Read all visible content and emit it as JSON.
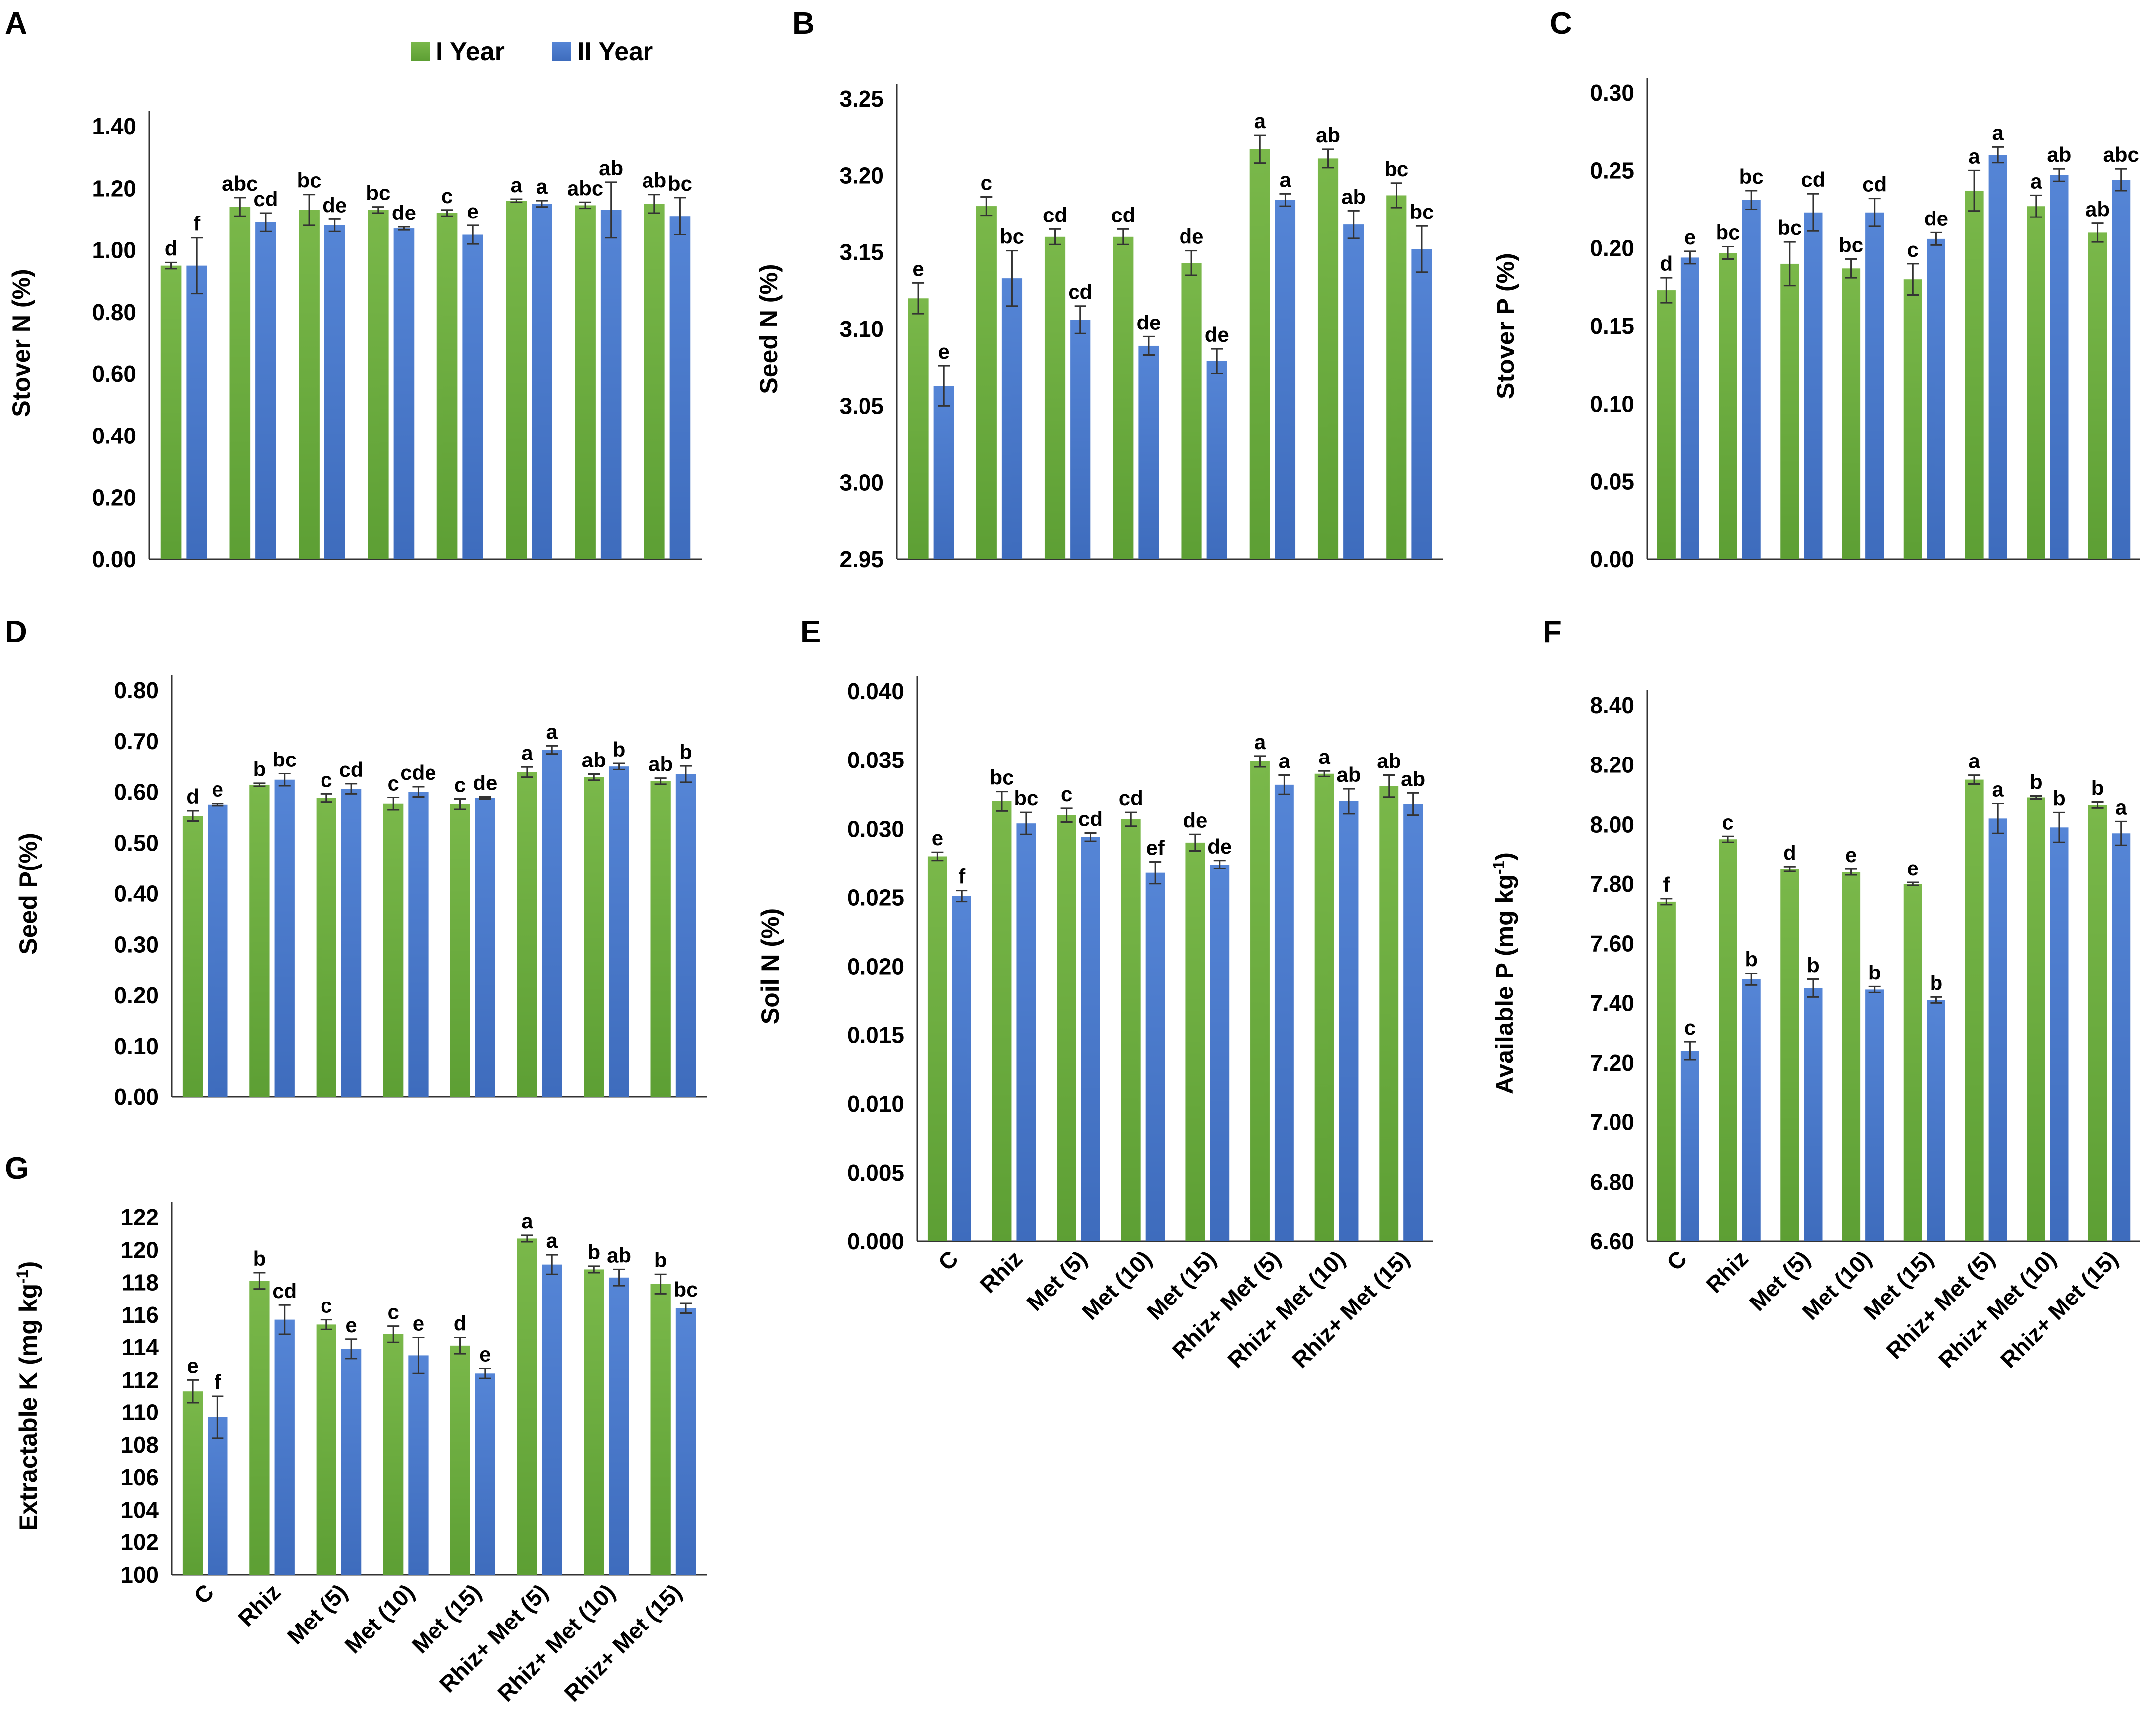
{
  "legend": {
    "series1": "I Year",
    "series2": "II Year",
    "color1": "#6aaa3f",
    "color2": "#4a78c8"
  },
  "categories": [
    "C",
    "Rhiz",
    "Met (5)",
    "Met (10)",
    "Met (15)",
    "Rhiz+ Met (5)",
    "Rhiz+ Met (10)",
    "Rhiz+ Met (15)"
  ],
  "chart_data": [
    {
      "panel": "A",
      "type": "bar",
      "ylabel": "Stover N (%)",
      "ylim": [
        0,
        1.4
      ],
      "yticks": [
        "0.00",
        "0.20",
        "0.40",
        "0.60",
        "0.80",
        "1.00",
        "1.20",
        "1.40"
      ],
      "show_categories": false,
      "series": [
        {
          "name": "I Year",
          "values": [
            0.95,
            1.14,
            1.13,
            1.13,
            1.12,
            1.16,
            1.145,
            1.15
          ],
          "errors": [
            0.01,
            0.03,
            0.05,
            0.01,
            0.01,
            0.005,
            0.01,
            0.03
          ],
          "labels": [
            "d",
            "abc",
            "bc",
            "bc",
            "c",
            "a",
            "abc",
            "ab"
          ]
        },
        {
          "name": "II Year",
          "values": [
            0.95,
            1.09,
            1.08,
            1.07,
            1.05,
            1.15,
            1.13,
            1.11
          ],
          "errors": [
            0.09,
            0.03,
            0.02,
            0.005,
            0.03,
            0.01,
            0.09,
            0.06
          ],
          "labels": [
            "f",
            "cd",
            "de",
            "de",
            "e",
            "a",
            "ab",
            "bc"
          ]
        }
      ]
    },
    {
      "panel": "B",
      "type": "bar",
      "ylabel": "Seed N (%)",
      "ylim": [
        2.95,
        3.25
      ],
      "yticks": [
        "2.95",
        "3.00",
        "3.05",
        "3.10",
        "3.15",
        "3.20",
        "3.25"
      ],
      "show_categories": false,
      "series": [
        {
          "name": "I Year",
          "values": [
            3.12,
            3.18,
            3.16,
            3.16,
            3.143,
            3.217,
            3.211,
            3.187
          ],
          "errors": [
            0.01,
            0.006,
            0.005,
            0.005,
            0.008,
            0.009,
            0.006,
            0.008
          ],
          "labels": [
            "e",
            "c",
            "cd",
            "cd",
            "de",
            "a",
            "ab",
            "bc"
          ]
        },
        {
          "name": "II Year",
          "values": [
            3.063,
            3.133,
            3.106,
            3.089,
            3.079,
            3.184,
            3.168,
            3.152
          ],
          "errors": [
            0.013,
            0.018,
            0.009,
            0.006,
            0.008,
            0.004,
            0.009,
            0.015
          ],
          "labels": [
            "e",
            "bc",
            "cd",
            "de",
            "de",
            "a",
            "ab",
            "bc"
          ]
        }
      ]
    },
    {
      "panel": "C",
      "type": "bar",
      "ylabel": "Stover P (%)",
      "ylim": [
        0,
        0.3
      ],
      "yticks": [
        "0.00",
        "0.05",
        "0.10",
        "0.15",
        "0.20",
        "0.25",
        "0.30"
      ],
      "show_categories": false,
      "series": [
        {
          "name": "I Year",
          "values": [
            0.173,
            0.197,
            0.19,
            0.187,
            0.18,
            0.237,
            0.227,
            0.21
          ],
          "errors": [
            0.008,
            0.004,
            0.014,
            0.006,
            0.01,
            0.013,
            0.007,
            0.006
          ],
          "labels": [
            "d",
            "bc",
            "bc",
            "bc",
            "c",
            "a",
            "a",
            "ab"
          ]
        },
        {
          "name": "II Year",
          "values": [
            0.194,
            0.231,
            0.223,
            0.223,
            0.206,
            0.26,
            0.247,
            0.244
          ],
          "errors": [
            0.004,
            0.006,
            0.012,
            0.009,
            0.004,
            0.005,
            0.004,
            0.007
          ],
          "labels": [
            "e",
            "bc",
            "cd",
            "cd",
            "de",
            "a",
            "ab",
            "abc"
          ]
        }
      ]
    },
    {
      "panel": "D",
      "type": "bar",
      "ylabel": "Seed P(%)",
      "ylim": [
        0,
        0.8
      ],
      "yticks": [
        "0.00",
        "0.10",
        "0.20",
        "0.30",
        "0.40",
        "0.50",
        "0.60",
        "0.70",
        "0.80"
      ],
      "show_categories": false,
      "series": [
        {
          "name": "I Year",
          "values": [
            0.553,
            0.614,
            0.588,
            0.577,
            0.576,
            0.639,
            0.629,
            0.621
          ],
          "errors": [
            0.01,
            0.003,
            0.008,
            0.012,
            0.01,
            0.01,
            0.006,
            0.006
          ],
          "labels": [
            "d",
            "b",
            "c",
            "c",
            "c",
            "a",
            "ab",
            "ab"
          ]
        },
        {
          "name": "II Year",
          "values": [
            0.575,
            0.624,
            0.606,
            0.6,
            0.588,
            0.683,
            0.65,
            0.635
          ],
          "errors": [
            0.002,
            0.012,
            0.01,
            0.01,
            0.002,
            0.008,
            0.006,
            0.016
          ],
          "labels": [
            "e",
            "bc",
            "cd",
            "cde",
            "de",
            "a",
            "b",
            "b"
          ]
        }
      ]
    },
    {
      "panel": "E",
      "type": "bar",
      "ylabel": "Soil N (%)",
      "ylim": [
        0,
        0.04
      ],
      "yticks": [
        "0.000",
        "0.005",
        "0.010",
        "0.015",
        "0.020",
        "0.025",
        "0.030",
        "0.035",
        "0.040"
      ],
      "show_categories": true,
      "series": [
        {
          "name": "I Year",
          "values": [
            0.028,
            0.032,
            0.031,
            0.0307,
            0.029,
            0.0349,
            0.034,
            0.0331
          ],
          "errors": [
            0.0003,
            0.0007,
            0.0005,
            0.0005,
            0.0006,
            0.0004,
            0.0002,
            0.0008
          ],
          "labels": [
            "e",
            "bc",
            "c",
            "cd",
            "de",
            "a",
            "a",
            "ab"
          ]
        },
        {
          "name": "II Year",
          "values": [
            0.0251,
            0.0304,
            0.0294,
            0.0268,
            0.0274,
            0.0332,
            0.032,
            0.0318
          ],
          "errors": [
            0.0004,
            0.0008,
            0.0003,
            0.0008,
            0.0003,
            0.0007,
            0.0009,
            0.0008
          ],
          "labels": [
            "f",
            "bc",
            "cd",
            "ef",
            "de",
            "a",
            "ab",
            "ab"
          ]
        }
      ]
    },
    {
      "panel": "F",
      "type": "bar",
      "ylabel": "Available P (mg kg",
      "ylabel_sup": "-1",
      "ylabel_end": ")",
      "ylim": [
        6.6,
        8.4
      ],
      "yticks": [
        "6.60",
        "6.80",
        "7.00",
        "7.20",
        "7.40",
        "7.60",
        "7.80",
        "8.00",
        "8.20",
        "8.40"
      ],
      "show_categories": true,
      "series": [
        {
          "name": "I Year",
          "values": [
            7.74,
            7.95,
            7.85,
            7.84,
            7.8,
            8.15,
            8.09,
            8.065
          ],
          "errors": [
            0.01,
            0.01,
            0.008,
            0.01,
            0.005,
            0.015,
            0.005,
            0.01
          ],
          "labels": [
            "f",
            "c",
            "d",
            "e",
            "e",
            "a",
            "b",
            "b"
          ]
        },
        {
          "name": "II Year",
          "values": [
            7.24,
            7.48,
            7.45,
            7.445,
            7.41,
            8.02,
            7.99,
            7.97
          ],
          "errors": [
            0.03,
            0.02,
            0.03,
            0.01,
            0.01,
            0.05,
            0.05,
            0.04
          ],
          "labels": [
            "c",
            "b",
            "b",
            "b",
            "b",
            "a",
            "b",
            "a"
          ]
        }
      ]
    },
    {
      "panel": "G",
      "type": "bar",
      "ylabel": "Extractable K (mg kg",
      "ylabel_sup": "-1",
      "ylabel_end": ")",
      "ylim": [
        100,
        122
      ],
      "yticks": [
        "100",
        "102",
        "104",
        "106",
        "108",
        "110",
        "112",
        "114",
        "116",
        "118",
        "120",
        "122"
      ],
      "show_categories": true,
      "series": [
        {
          "name": "I Year",
          "values": [
            111.3,
            118.1,
            115.4,
            114.8,
            114.1,
            120.7,
            118.8,
            117.9
          ],
          "errors": [
            0.7,
            0.5,
            0.3,
            0.5,
            0.5,
            0.2,
            0.2,
            0.6
          ],
          "labels": [
            "e",
            "b",
            "c",
            "c",
            "d",
            "a",
            "b",
            "b"
          ]
        },
        {
          "name": "II Year",
          "values": [
            109.7,
            115.7,
            113.9,
            113.5,
            112.4,
            119.1,
            118.3,
            116.4
          ],
          "errors": [
            1.3,
            0.9,
            0.6,
            1.1,
            0.3,
            0.6,
            0.5,
            0.3
          ],
          "labels": [
            "f",
            "cd",
            "e",
            "e",
            "e",
            "a",
            "ab",
            "bc"
          ]
        }
      ]
    }
  ]
}
